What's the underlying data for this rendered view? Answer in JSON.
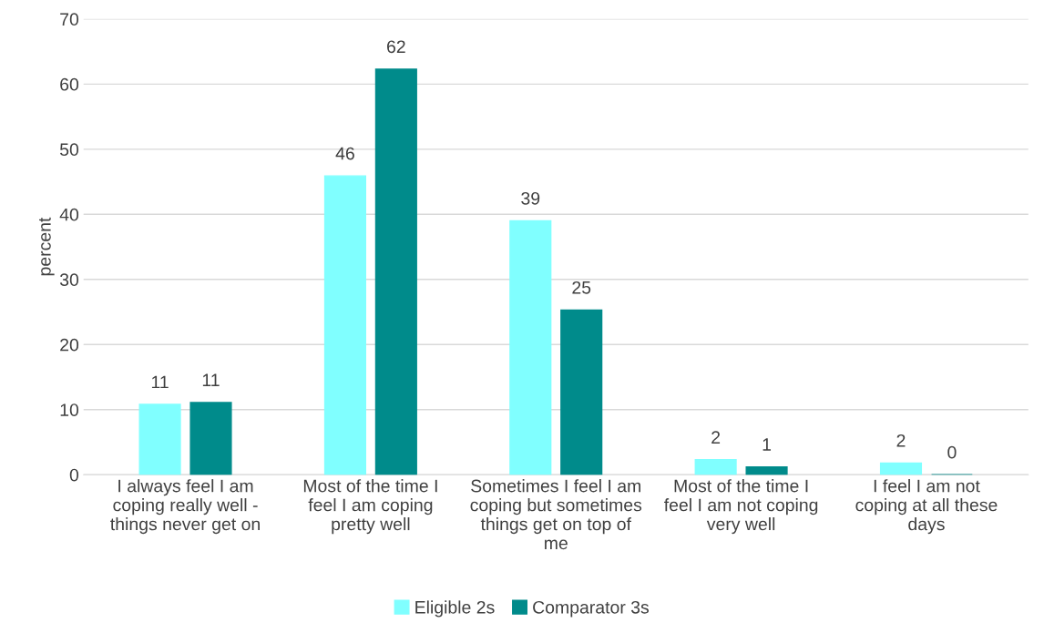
{
  "chart_data": {
    "type": "bar",
    "ylabel": "percent",
    "categories": [
      "I always feel I am coping really well - things never get on",
      "Most of the time I feel I am coping pretty well",
      "Sometimes I feel I am coping but sometimes things get on top of me",
      "Most of the time I feel I am not coping very well",
      "I feel I am not coping at all these days"
    ],
    "series": [
      {
        "name": "Eligible 2s",
        "color": "#80ffff",
        "values": [
          10.8,
          45.9,
          39.0,
          2.3,
          1.8
        ],
        "value_labels": [
          "11",
          "46",
          "39",
          "2",
          "2"
        ]
      },
      {
        "name": "Comparator 3s",
        "color": "#008b8b",
        "values": [
          11.1,
          62.3,
          25.3,
          1.2,
          0
        ],
        "value_labels": [
          "11",
          "62",
          "25",
          "1",
          "0"
        ]
      }
    ],
    "ylim": [
      0,
      70
    ],
    "yticks": [
      0,
      10,
      20,
      30,
      40,
      50,
      60,
      70
    ],
    "grid": "y",
    "legend": "bottom"
  }
}
